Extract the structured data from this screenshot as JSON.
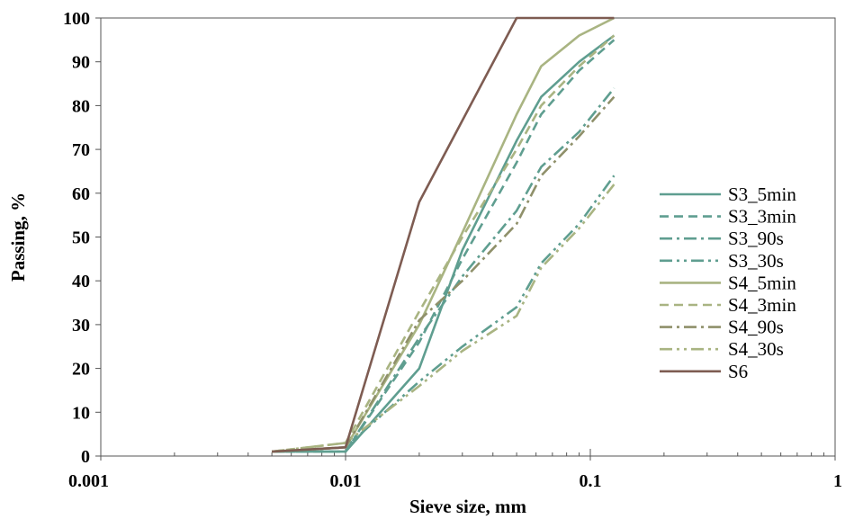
{
  "chart_data": {
    "type": "line",
    "title": "",
    "xlabel": "Sieve size, mm",
    "ylabel": "Passing, %",
    "x_scale": "log",
    "xlim": [
      0.001,
      1
    ],
    "ylim": [
      0,
      100
    ],
    "x_ticks": [
      0.001,
      0.01,
      0.1,
      1
    ],
    "x_tick_labels": [
      "0.001",
      "0.01",
      "0.1",
      "1"
    ],
    "y_ticks": [
      0,
      10,
      20,
      30,
      40,
      50,
      60,
      70,
      80,
      90,
      100
    ],
    "y_tick_labels": [
      "0",
      "10",
      "20",
      "30",
      "40",
      "50",
      "60",
      "70",
      "80",
      "90",
      "100"
    ],
    "grid": false,
    "legend_position": "right",
    "series": [
      {
        "name": "S3_5min",
        "color": "#5f9e90",
        "dash": "solid",
        "x": [
          0.005,
          0.01,
          0.02,
          0.03,
          0.05,
          0.063,
          0.09,
          0.125
        ],
        "y": [
          1,
          1,
          20,
          47,
          72,
          82,
          90,
          96
        ]
      },
      {
        "name": "S3_3min",
        "color": "#5f9e90",
        "dash": "dash",
        "x": [
          0.005,
          0.01,
          0.02,
          0.03,
          0.05,
          0.063,
          0.09,
          0.125
        ],
        "y": [
          1,
          1,
          26,
          45,
          67,
          78,
          88,
          95
        ]
      },
      {
        "name": "S3_90s",
        "color": "#5f9e90",
        "dash": "dashdot",
        "x": [
          0.005,
          0.01,
          0.02,
          0.03,
          0.05,
          0.063,
          0.09,
          0.125
        ],
        "y": [
          1,
          1,
          27,
          41,
          56,
          66,
          74,
          84
        ]
      },
      {
        "name": "S3_30s",
        "color": "#5f9e90",
        "dash": "dashdotdot",
        "x": [
          0.005,
          0.01,
          0.02,
          0.03,
          0.05,
          0.063,
          0.09,
          0.125
        ],
        "y": [
          1,
          2,
          17,
          25,
          34,
          44,
          53,
          64
        ]
      },
      {
        "name": "S4_5min",
        "color": "#a9b482",
        "dash": "solid",
        "x": [
          0.005,
          0.01,
          0.02,
          0.03,
          0.05,
          0.063,
          0.09,
          0.125
        ],
        "y": [
          1,
          2,
          30,
          51,
          78,
          89,
          96,
          100
        ]
      },
      {
        "name": "S4_3min",
        "color": "#a9b482",
        "dash": "dash",
        "x": [
          0.005,
          0.01,
          0.02,
          0.03,
          0.05,
          0.063,
          0.09,
          0.125
        ],
        "y": [
          1,
          3,
          33,
          50,
          70,
          80,
          89,
          96
        ]
      },
      {
        "name": "S4_90s",
        "color": "#8f906a",
        "dash": "dashdot",
        "x": [
          0.005,
          0.01,
          0.02,
          0.03,
          0.05,
          0.063,
          0.09,
          0.125
        ],
        "y": [
          1,
          2,
          31,
          40,
          53,
          64,
          73,
          82
        ]
      },
      {
        "name": "S4_30s",
        "color": "#a9b482",
        "dash": "dashdotdot",
        "x": [
          0.005,
          0.01,
          0.02,
          0.03,
          0.05,
          0.063,
          0.09,
          0.125
        ],
        "y": [
          1,
          3,
          16,
          24,
          32,
          43,
          52,
          62
        ]
      },
      {
        "name": "S6",
        "color": "#7e5c52",
        "dash": "solid",
        "x": [
          0.005,
          0.01,
          0.02,
          0.05,
          0.063,
          0.09,
          0.125
        ],
        "y": [
          1,
          2,
          58,
          100,
          100,
          100,
          100
        ]
      }
    ]
  }
}
